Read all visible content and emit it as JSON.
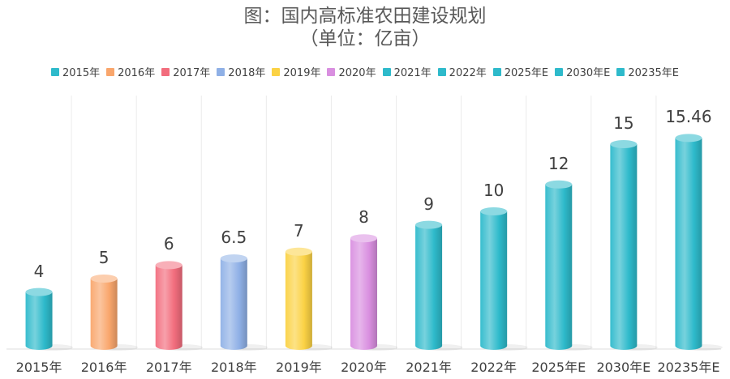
{
  "chart_data": {
    "type": "bar",
    "title": "图：国内高标准农田建设规划",
    "subtitle": "（单位：亿亩）",
    "categories": [
      "2015年",
      "2016年",
      "2017年",
      "2018年",
      "2019年",
      "2020年",
      "2021年",
      "2022年",
      "2025年E",
      "2030年E",
      "20235年E"
    ],
    "values": [
      4,
      5,
      6,
      6.5,
      7,
      8,
      9,
      10,
      12,
      15,
      15.46
    ],
    "value_labels": [
      "4",
      "5",
      "6",
      "6.5",
      "7",
      "8",
      "9",
      "10",
      "12",
      "15",
      "15.46"
    ],
    "colors": [
      "#2ebacb",
      "#f9a66c",
      "#f26d7d",
      "#8fb0e6",
      "#fbd244",
      "#d98fe0",
      "#2ebacb",
      "#2ebacb",
      "#2ebacb",
      "#2ebacb",
      "#2ebacb"
    ],
    "legend": [
      "2015年",
      "2016年",
      "2017年",
      "2018年",
      "2019年",
      "2020年",
      "2021年",
      "2022年",
      "2025年E",
      "2030年E",
      "20235年E"
    ],
    "legend_position": "top",
    "xlabel": "",
    "ylabel": "",
    "ylim": [
      0,
      17
    ],
    "grid": false,
    "bar_shape": "cylinder"
  }
}
